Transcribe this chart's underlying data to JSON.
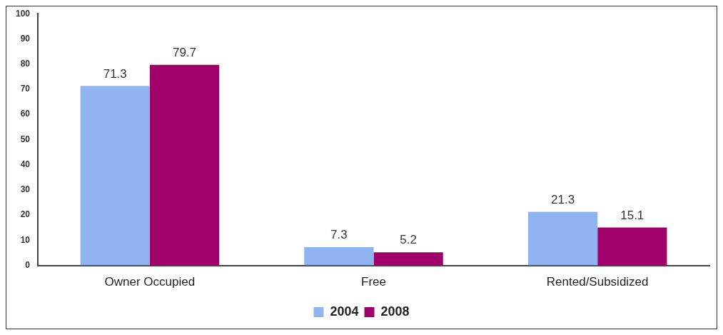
{
  "chart_data": {
    "type": "bar",
    "categories": [
      "Owner Occupied",
      "Free",
      "Rented/Subsidized"
    ],
    "series": [
      {
        "name": "2004",
        "color": "#8fb4f0",
        "values": [
          71.3,
          7.3,
          21.3
        ]
      },
      {
        "name": "2008",
        "color": "#a0006a",
        "values": [
          79.7,
          5.2,
          15.1
        ]
      }
    ],
    "ylim": [
      0,
      100
    ],
    "yticks": [
      0,
      10,
      20,
      30,
      40,
      50,
      60,
      70,
      80,
      90,
      100
    ],
    "grid": false,
    "legend": "bottom",
    "data_labels": true
  }
}
